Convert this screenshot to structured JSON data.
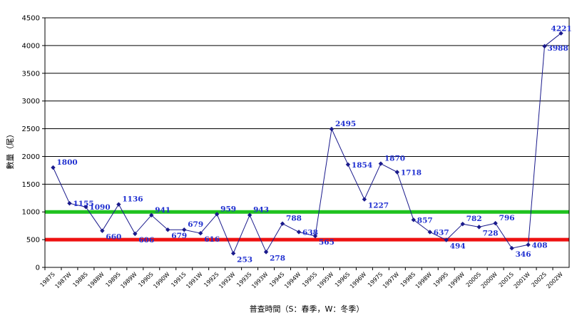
{
  "chart_data": {
    "type": "line",
    "title": "",
    "xlabel": "普查時間（S：春季，W：冬季）",
    "ylabel": "數量（尾）",
    "ylim": [
      0,
      4500
    ],
    "yticks": [
      0,
      500,
      1000,
      1500,
      2000,
      2500,
      3000,
      3500,
      4000,
      4500
    ],
    "grid": true,
    "legend": "none",
    "categories": [
      "1987S",
      "1987W",
      "1988S",
      "1988W",
      "1989S",
      "1989W",
      "1990S",
      "1990W",
      "1991S",
      "1991W",
      "1992S",
      "1992W",
      "1993S",
      "1993W",
      "1994S",
      "1994W",
      "1995S",
      "1995W",
      "1996S",
      "1996W",
      "1997S",
      "1997W",
      "1998S",
      "1998W",
      "1999S",
      "1999W",
      "2000S",
      "2000W",
      "2001S",
      "2001W",
      "2002S",
      "2002W"
    ],
    "series": [
      {
        "color": "#1a1a8c",
        "values": [
          1800,
          1155,
          1090,
          660,
          1136,
          606,
          941,
          679,
          679,
          616,
          959,
          253,
          943,
          278,
          788,
          638,
          565,
          2495,
          1854,
          1227,
          1870,
          1718,
          857,
          637,
          494,
          782,
          728,
          796,
          346,
          408,
          3988,
          4221
        ],
        "labels": [
          "1800",
          "1155",
          "1090",
          "660",
          "1136",
          "606",
          "941",
          "679",
          "679",
          "616",
          "959",
          "253",
          "943",
          "278",
          "788",
          "638",
          "565",
          "2495",
          "1854",
          "1227",
          "1870",
          "1718",
          "857",
          "637",
          "494",
          "782",
          "728",
          "796",
          "346",
          "408",
          "3988",
          "4221"
        ]
      }
    ],
    "reference_lines": [
      {
        "value": 1000,
        "color": "#1fc21f"
      },
      {
        "value": 500,
        "color": "#ee1111"
      }
    ]
  }
}
